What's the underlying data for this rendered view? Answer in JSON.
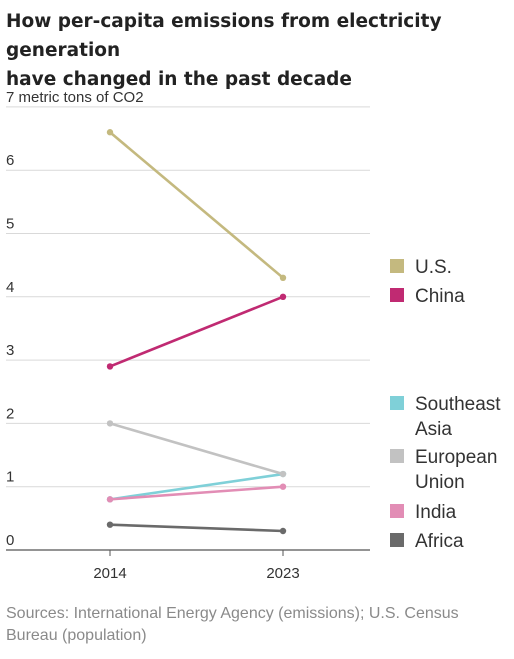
{
  "header": {
    "title_line1": "How per-capita emissions from electricity generation",
    "title_line2": "have changed in the past decade"
  },
  "footer": {
    "source_line1": "Sources: International Energy Agency (emissions); U.S. Census",
    "source_line2": "Bureau (population)"
  },
  "chart_data": {
    "type": "line",
    "title": "How per-capita emissions from electricity generation have changed in the past decade",
    "ylabel": "metric tons of CO2",
    "ylim": [
      0,
      7
    ],
    "grid": true,
    "legend_position": "right",
    "y_ticks": [
      {
        "value": 7,
        "label": "7 metric tons of CO2"
      },
      {
        "value": 6,
        "label": "6"
      },
      {
        "value": 5,
        "label": "5"
      },
      {
        "value": 4,
        "label": "4"
      },
      {
        "value": 3,
        "label": "3"
      },
      {
        "value": 2,
        "label": "2"
      },
      {
        "value": 1,
        "label": "1"
      },
      {
        "value": 0,
        "label": "0"
      }
    ],
    "x": [
      "2014",
      "2023"
    ],
    "series": [
      {
        "name": "U.S.",
        "legend_lines": [
          "U.S."
        ],
        "color": "#c4b97f",
        "values": [
          6.6,
          4.3
        ]
      },
      {
        "name": "China",
        "legend_lines": [
          "China"
        ],
        "color": "#c02a72",
        "values": [
          2.9,
          4.0
        ]
      },
      {
        "name": "Southeast Asia",
        "legend_lines": [
          "Southeast",
          "Asia"
        ],
        "color": "#7fd0d8",
        "values": [
          0.8,
          1.2
        ]
      },
      {
        "name": "European Union",
        "legend_lines": [
          "European",
          "Union"
        ],
        "color": "#c2c2c2",
        "values": [
          2.0,
          1.2
        ]
      },
      {
        "name": "India",
        "legend_lines": [
          "India"
        ],
        "color": "#e28db5",
        "values": [
          0.8,
          1.0
        ]
      },
      {
        "name": "Africa",
        "legend_lines": [
          "Africa"
        ],
        "color": "#6a6a6a",
        "values": [
          0.4,
          0.3
        ]
      }
    ]
  }
}
